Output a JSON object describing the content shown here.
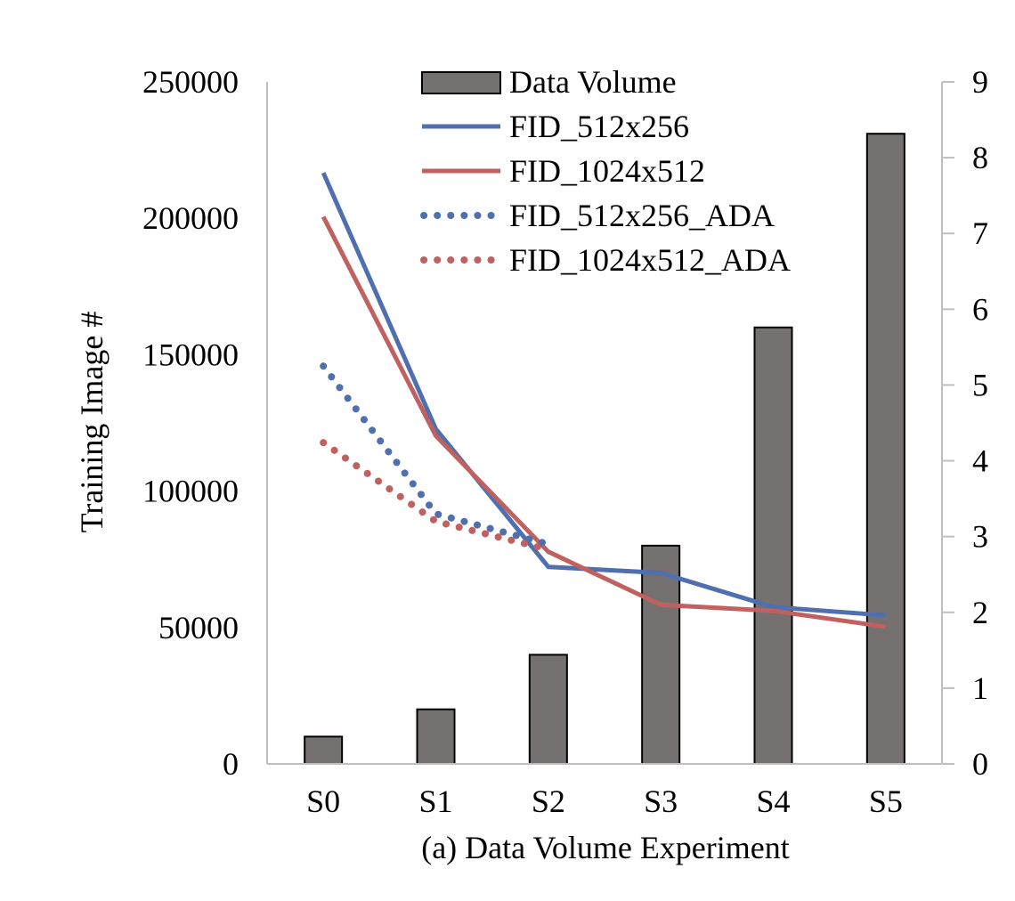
{
  "chart_data": {
    "type": "bar",
    "categories": [
      "S0",
      "S1",
      "S2",
      "S3",
      "S4",
      "S5"
    ],
    "xlabel": "(a) Data Volume Experiment",
    "ylabel": "Training Image #",
    "ylabel_right": "",
    "ylim": [
      0,
      250000
    ],
    "ylim_right": [
      0,
      9
    ],
    "yticks": [
      "0",
      "50000",
      "100000",
      "150000",
      "200000",
      "250000"
    ],
    "yticks_right": [
      "0",
      "1",
      "2",
      "3",
      "4",
      "5",
      "6",
      "7",
      "8",
      "9"
    ],
    "grid": false,
    "legend_position": "top-center",
    "bars": {
      "name": "Data Volume",
      "color": "#767171",
      "values": [
        10000,
        20000,
        40000,
        80000,
        160000,
        231000
      ]
    },
    "series": [
      {
        "name": "FID_512x256",
        "axis": "right",
        "style": "solid",
        "color": "#4F6FAE",
        "values": [
          7.8,
          4.42,
          2.6,
          2.52,
          2.07,
          1.96
        ]
      },
      {
        "name": "FID_1024x512",
        "axis": "right",
        "style": "solid",
        "color": "#C0605F",
        "values": [
          7.22,
          4.33,
          2.8,
          2.1,
          2.02,
          1.81
        ]
      },
      {
        "name": "FID_512x256_ADA",
        "axis": "right",
        "style": "dotted",
        "color": "#4F6FAE",
        "values": [
          5.25,
          3.3,
          2.9,
          null,
          null,
          null
        ]
      },
      {
        "name": "FID_1024x512_ADA",
        "axis": "right",
        "style": "dotted",
        "color": "#C0605F",
        "values": [
          4.24,
          3.2,
          2.83,
          null,
          null,
          null
        ]
      }
    ]
  }
}
